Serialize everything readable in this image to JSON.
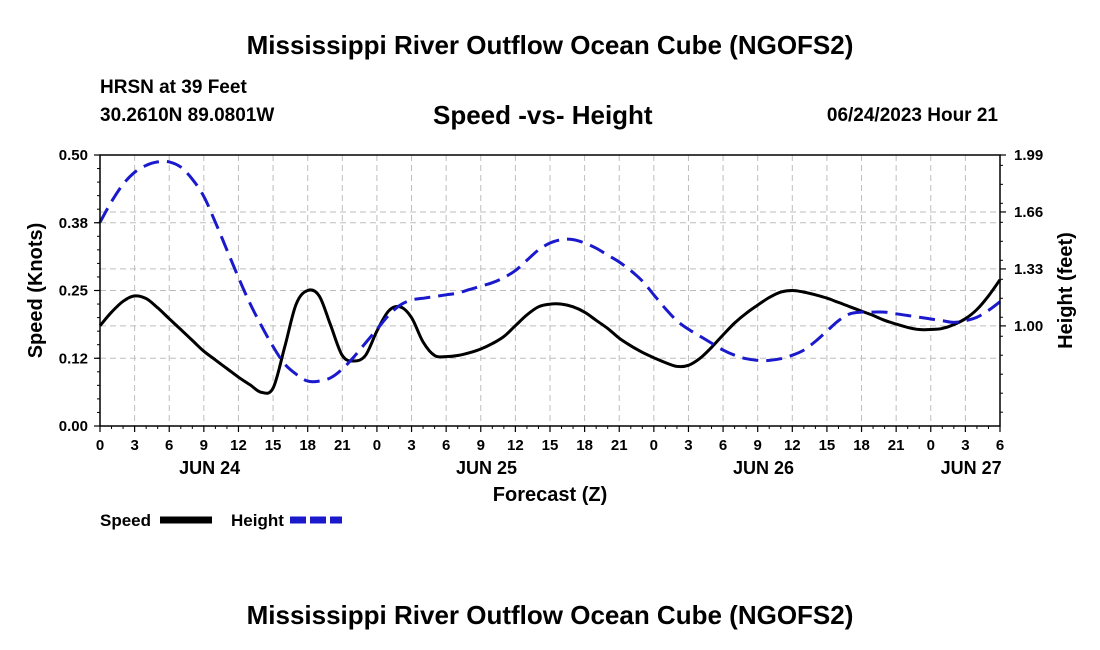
{
  "header": {
    "title": "Mississippi River Outflow Ocean Cube (NGOFS2)",
    "station": "HRSN at 39 Feet",
    "coords": "30.2610N  89.0801W",
    "subtitle": "Speed -vs- Height",
    "datetime": "06/24/2023 Hour 21"
  },
  "footer": {
    "title": "Mississippi River Outflow Ocean Cube (NGOFS2)"
  },
  "chart_data": {
    "type": "line",
    "xlabel": "Forecast (Z)",
    "ylabel": "Speed (Knots)",
    "ylabel_right": "Height (feet)",
    "x_range_hours": [
      0,
      78
    ],
    "x_tick_step_hours": 3,
    "x_tick_labels": [
      "0",
      "3",
      "6",
      "9",
      "12",
      "15",
      "18",
      "21",
      "0",
      "3",
      "6",
      "9",
      "12",
      "15",
      "18",
      "21",
      "0",
      "3",
      "6",
      "9",
      "12",
      "15",
      "18",
      "21",
      "0",
      "3",
      "6"
    ],
    "day_labels": [
      {
        "label": "JUN 24",
        "hour": 9.5
      },
      {
        "label": "JUN 25",
        "hour": 33.5
      },
      {
        "label": "JUN 26",
        "hour": 57.5
      },
      {
        "label": "JUN 27",
        "hour": 75.5
      }
    ],
    "ylim_left": [
      0,
      0.5
    ],
    "y_ticks_left": [
      0,
      0.125,
      0.25,
      0.375,
      0.5
    ],
    "y_tick_labels_left": [
      "0.00",
      "0.12",
      "0.25",
      "0.38",
      "0.50"
    ],
    "ylim_right": [
      0.42,
      1.99
    ],
    "y_ticks_right": [
      1.0,
      1.33,
      1.66,
      1.99
    ],
    "y_tick_labels_right": [
      "1.00",
      "1.33",
      "1.66",
      "1.99"
    ],
    "grid": true,
    "series": [
      {
        "name": "Speed",
        "axis": "left",
        "color": "#000000",
        "style": "solid",
        "x": [
          0,
          1,
          2,
          3,
          4,
          5,
          6,
          7,
          8,
          9,
          10,
          11,
          12,
          13,
          14,
          15,
          16,
          17,
          18,
          19,
          20,
          21,
          22,
          23,
          24,
          25,
          26,
          27,
          28,
          29,
          30,
          31,
          32,
          33,
          34,
          35,
          36,
          37,
          38,
          39,
          40,
          41,
          42,
          43,
          44,
          45,
          46,
          47,
          48,
          49,
          50,
          51,
          52,
          53,
          54,
          55,
          56,
          57,
          58,
          59,
          60,
          61,
          62,
          63,
          64,
          65,
          66,
          67,
          68,
          69,
          70,
          71,
          72,
          73,
          74,
          75,
          76,
          77,
          78
        ],
        "values": [
          0.185,
          0.21,
          0.23,
          0.24,
          0.235,
          0.218,
          0.198,
          0.178,
          0.158,
          0.138,
          0.122,
          0.106,
          0.09,
          0.076,
          0.062,
          0.07,
          0.145,
          0.225,
          0.25,
          0.24,
          0.185,
          0.13,
          0.12,
          0.13,
          0.175,
          0.212,
          0.22,
          0.2,
          0.155,
          0.13,
          0.128,
          0.13,
          0.135,
          0.142,
          0.152,
          0.165,
          0.185,
          0.205,
          0.22,
          0.225,
          0.225,
          0.22,
          0.21,
          0.195,
          0.18,
          0.162,
          0.148,
          0.136,
          0.126,
          0.117,
          0.11,
          0.112,
          0.125,
          0.145,
          0.168,
          0.19,
          0.208,
          0.223,
          0.237,
          0.247,
          0.25,
          0.247,
          0.242,
          0.236,
          0.228,
          0.22,
          0.212,
          0.204,
          0.195,
          0.188,
          0.182,
          0.178,
          0.178,
          0.18,
          0.187,
          0.198,
          0.215,
          0.24,
          0.27
        ]
      },
      {
        "name": "Height",
        "axis": "right",
        "color": "#1a1acc",
        "style": "dashed",
        "x": [
          0,
          1,
          2,
          3,
          4,
          5,
          6,
          7,
          8,
          9,
          10,
          11,
          12,
          13,
          14,
          15,
          16,
          17,
          18,
          19,
          20,
          21,
          22,
          23,
          24,
          25,
          26,
          27,
          28,
          29,
          30,
          31,
          32,
          33,
          34,
          35,
          36,
          37,
          38,
          39,
          40,
          41,
          42,
          43,
          44,
          45,
          46,
          47,
          48,
          49,
          50,
          51,
          52,
          53,
          54,
          55,
          56,
          57,
          58,
          59,
          60,
          61,
          62,
          63,
          64,
          65,
          66,
          67,
          68,
          69,
          70,
          71,
          72,
          73,
          74,
          75,
          76,
          77,
          78
        ],
        "values": [
          1.6,
          1.72,
          1.82,
          1.89,
          1.93,
          1.95,
          1.95,
          1.92,
          1.85,
          1.75,
          1.6,
          1.44,
          1.28,
          1.13,
          1.0,
          0.88,
          0.78,
          0.72,
          0.68,
          0.68,
          0.7,
          0.75,
          0.82,
          0.9,
          0.98,
          1.06,
          1.12,
          1.15,
          1.16,
          1.17,
          1.18,
          1.19,
          1.21,
          1.23,
          1.25,
          1.28,
          1.32,
          1.38,
          1.44,
          1.48,
          1.5,
          1.5,
          1.48,
          1.45,
          1.41,
          1.37,
          1.32,
          1.26,
          1.18,
          1.1,
          1.03,
          0.98,
          0.94,
          0.9,
          0.86,
          0.83,
          0.81,
          0.8,
          0.8,
          0.81,
          0.83,
          0.86,
          0.91,
          0.97,
          1.03,
          1.07,
          1.08,
          1.08,
          1.08,
          1.07,
          1.06,
          1.05,
          1.04,
          1.03,
          1.02,
          1.03,
          1.05,
          1.09,
          1.14
        ]
      }
    ],
    "legend": [
      {
        "label": "Speed",
        "color": "#000000",
        "style": "solid"
      },
      {
        "label": "Height",
        "color": "#1a1acc",
        "style": "dashed"
      }
    ],
    "legend_position": "bottom-left"
  }
}
